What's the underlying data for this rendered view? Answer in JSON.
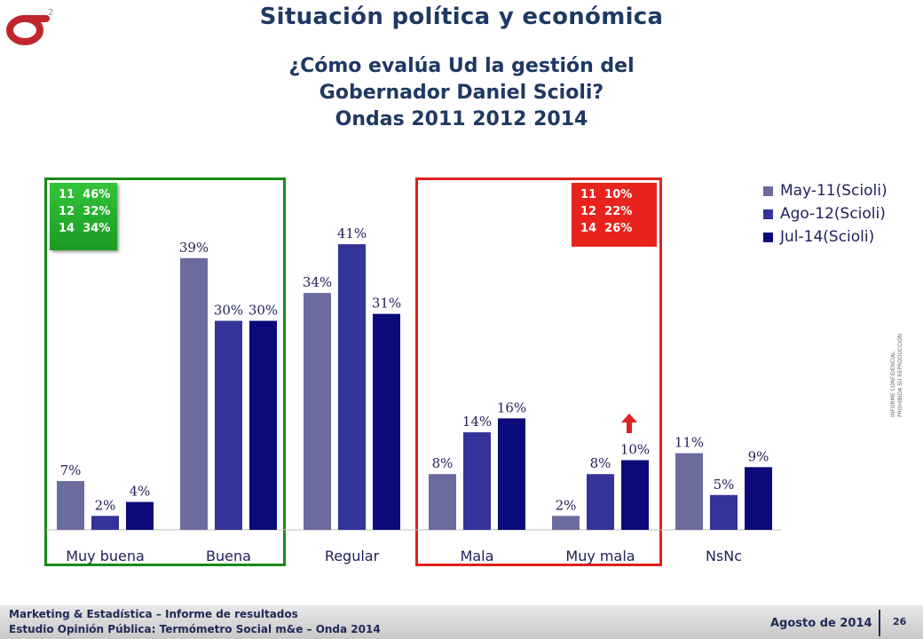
{
  "header": {
    "title": "Situación política y económica",
    "logo_superscript": "2"
  },
  "question": {
    "line1": "¿Cómo evalúa Ud la gestión del",
    "line2": "Gobernador Daniel Scioli?",
    "line3": "Ondas 2011 2012 2014"
  },
  "notes": {
    "positive": [
      "11  46%",
      "12  32%",
      "14  34%"
    ],
    "negative": [
      "11  10%",
      "12  22%",
      "14  26%"
    ]
  },
  "colors": {
    "may11": "#6b6b9e",
    "ago12": "#33339a",
    "jul14": "#0a0a7a",
    "positive_box": "#1a8a1a",
    "negative_box": "#e0201c",
    "title": "#1f3864"
  },
  "chart_data": {
    "type": "bar",
    "categories": [
      "Muy buena",
      "Buena",
      "Regular",
      "Mala",
      "Muy mala",
      "NsNc"
    ],
    "series": [
      {
        "name": "May-11(Scioli)",
        "values": [
          7,
          39,
          34,
          8,
          2,
          11
        ],
        "labels": [
          "7%",
          "39%",
          "34%",
          "8%",
          "2%",
          "11%"
        ]
      },
      {
        "name": "Ago-12(Scioli)",
        "values": [
          2,
          30,
          41,
          14,
          8,
          5
        ],
        "labels": [
          "2%",
          "30%",
          "41%",
          "14%",
          "8%",
          "5%"
        ]
      },
      {
        "name": "Jul-14(Scioli)",
        "values": [
          4,
          30,
          31,
          16,
          10,
          9
        ],
        "labels": [
          "4%",
          "30%",
          "31%",
          "16%",
          "10%",
          "9%"
        ]
      }
    ],
    "ylim": [
      0,
      44
    ],
    "legend": "top-right",
    "grid": false
  },
  "side_note": {
    "line1": "INFORME CONFIDENCIAL",
    "line2": "PROHIBIDA SU REPRODUCCION"
  },
  "footer": {
    "line1": "Marketing & Estadística – Informe de resultados",
    "line2": "Estudio Opinión Pública: Termómetro Social m&e – Onda 2014",
    "date": "Agosto de 2014",
    "page": "26"
  }
}
